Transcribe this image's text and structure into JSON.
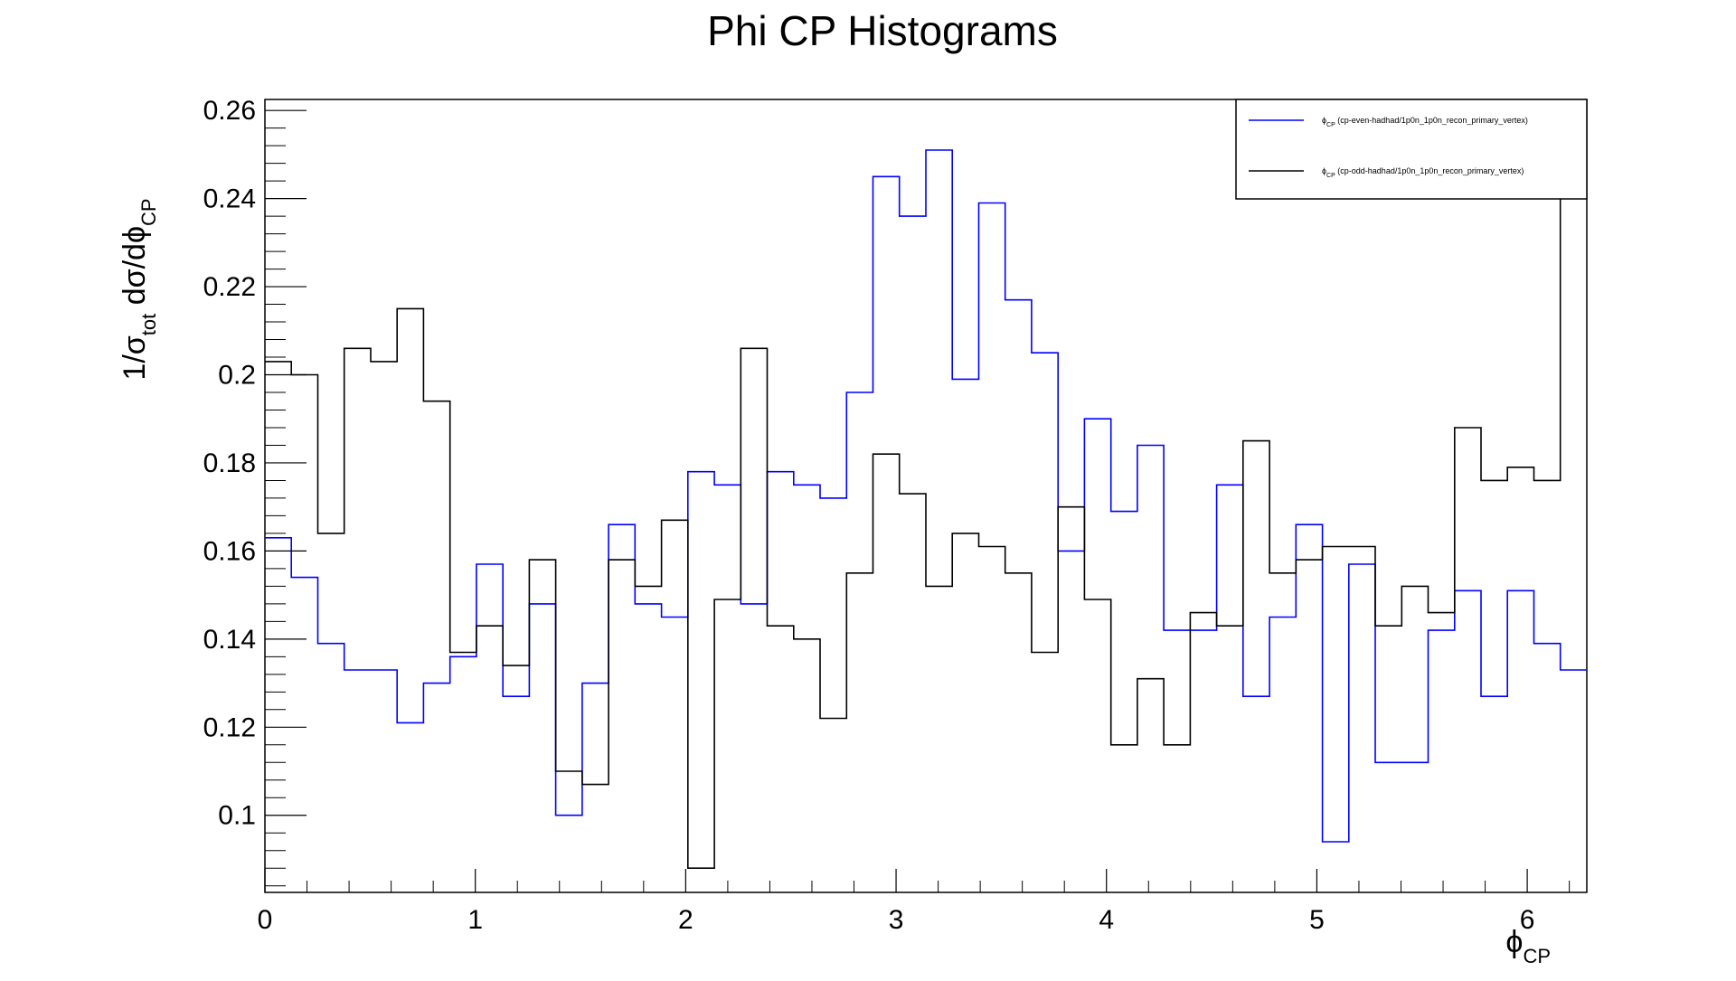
{
  "chart_data": {
    "type": "histogram-step",
    "title": "Phi CP Histograms",
    "xlabel": {
      "main": "ϕ",
      "sub": "CP"
    },
    "ylabel": {
      "p1": "1/σ",
      "p1_sub": "tot",
      "p2": " dσ/dϕ",
      "p2_sub": "CP"
    },
    "xlim": [
      0,
      6.2832
    ],
    "ylim": [
      0.0825,
      0.2625
    ],
    "x_ticks": [
      0,
      1,
      2,
      3,
      4,
      5,
      6
    ],
    "x_tick_labels": [
      "0",
      "1",
      "2",
      "3",
      "4",
      "5",
      "6"
    ],
    "y_ticks": [
      0.1,
      0.12,
      0.14,
      0.16,
      0.18,
      0.2,
      0.22,
      0.24,
      0.26
    ],
    "y_tick_labels": [
      "0.1",
      "0.12",
      "0.14",
      "0.16",
      "0.18",
      "0.2",
      "0.22",
      "0.24",
      "0.26"
    ],
    "bin_edges_start": 0,
    "bin_width": 0.12566,
    "nbins": 50,
    "legend_position": "top-right",
    "series": [
      {
        "name": "ϕ",
        "name_sub": "CP",
        "name_rest": " (cp-even-hadhad/1p0n_1p0n_recon_primary_vertex)",
        "color": "#0000ff",
        "values": [
          0.163,
          0.154,
          0.139,
          0.133,
          0.133,
          0.121,
          0.13,
          0.136,
          0.157,
          0.127,
          0.148,
          0.1,
          0.13,
          0.166,
          0.148,
          0.145,
          0.178,
          0.175,
          0.148,
          0.178,
          0.175,
          0.172,
          0.196,
          0.245,
          0.236,
          0.251,
          0.199,
          0.239,
          0.217,
          0.205,
          0.16,
          0.19,
          0.169,
          0.184,
          0.142,
          0.142,
          0.175,
          0.127,
          0.145,
          0.166,
          0.094,
          0.157,
          0.112,
          0.112,
          0.142,
          0.151,
          0.127,
          0.151,
          0.139,
          0.133
        ]
      },
      {
        "name": "ϕ",
        "name_sub": "CP",
        "name_rest": " (cp-odd-hadhad/1p0n_1p0n_recon_primary_vertex)",
        "color": "#000000",
        "values": [
          0.203,
          0.2,
          0.164,
          0.206,
          0.203,
          0.215,
          0.194,
          0.137,
          0.143,
          0.134,
          0.158,
          0.11,
          0.107,
          0.158,
          0.152,
          0.167,
          0.088,
          0.149,
          0.206,
          0.143,
          0.14,
          0.122,
          0.155,
          0.182,
          0.173,
          0.152,
          0.164,
          0.161,
          0.155,
          0.137,
          0.17,
          0.149,
          0.116,
          0.131,
          0.116,
          0.146,
          0.143,
          0.185,
          0.155,
          0.158,
          0.161,
          0.161,
          0.143,
          0.152,
          0.146,
          0.188,
          0.176,
          0.179,
          0.176,
          0.265
        ]
      }
    ]
  }
}
